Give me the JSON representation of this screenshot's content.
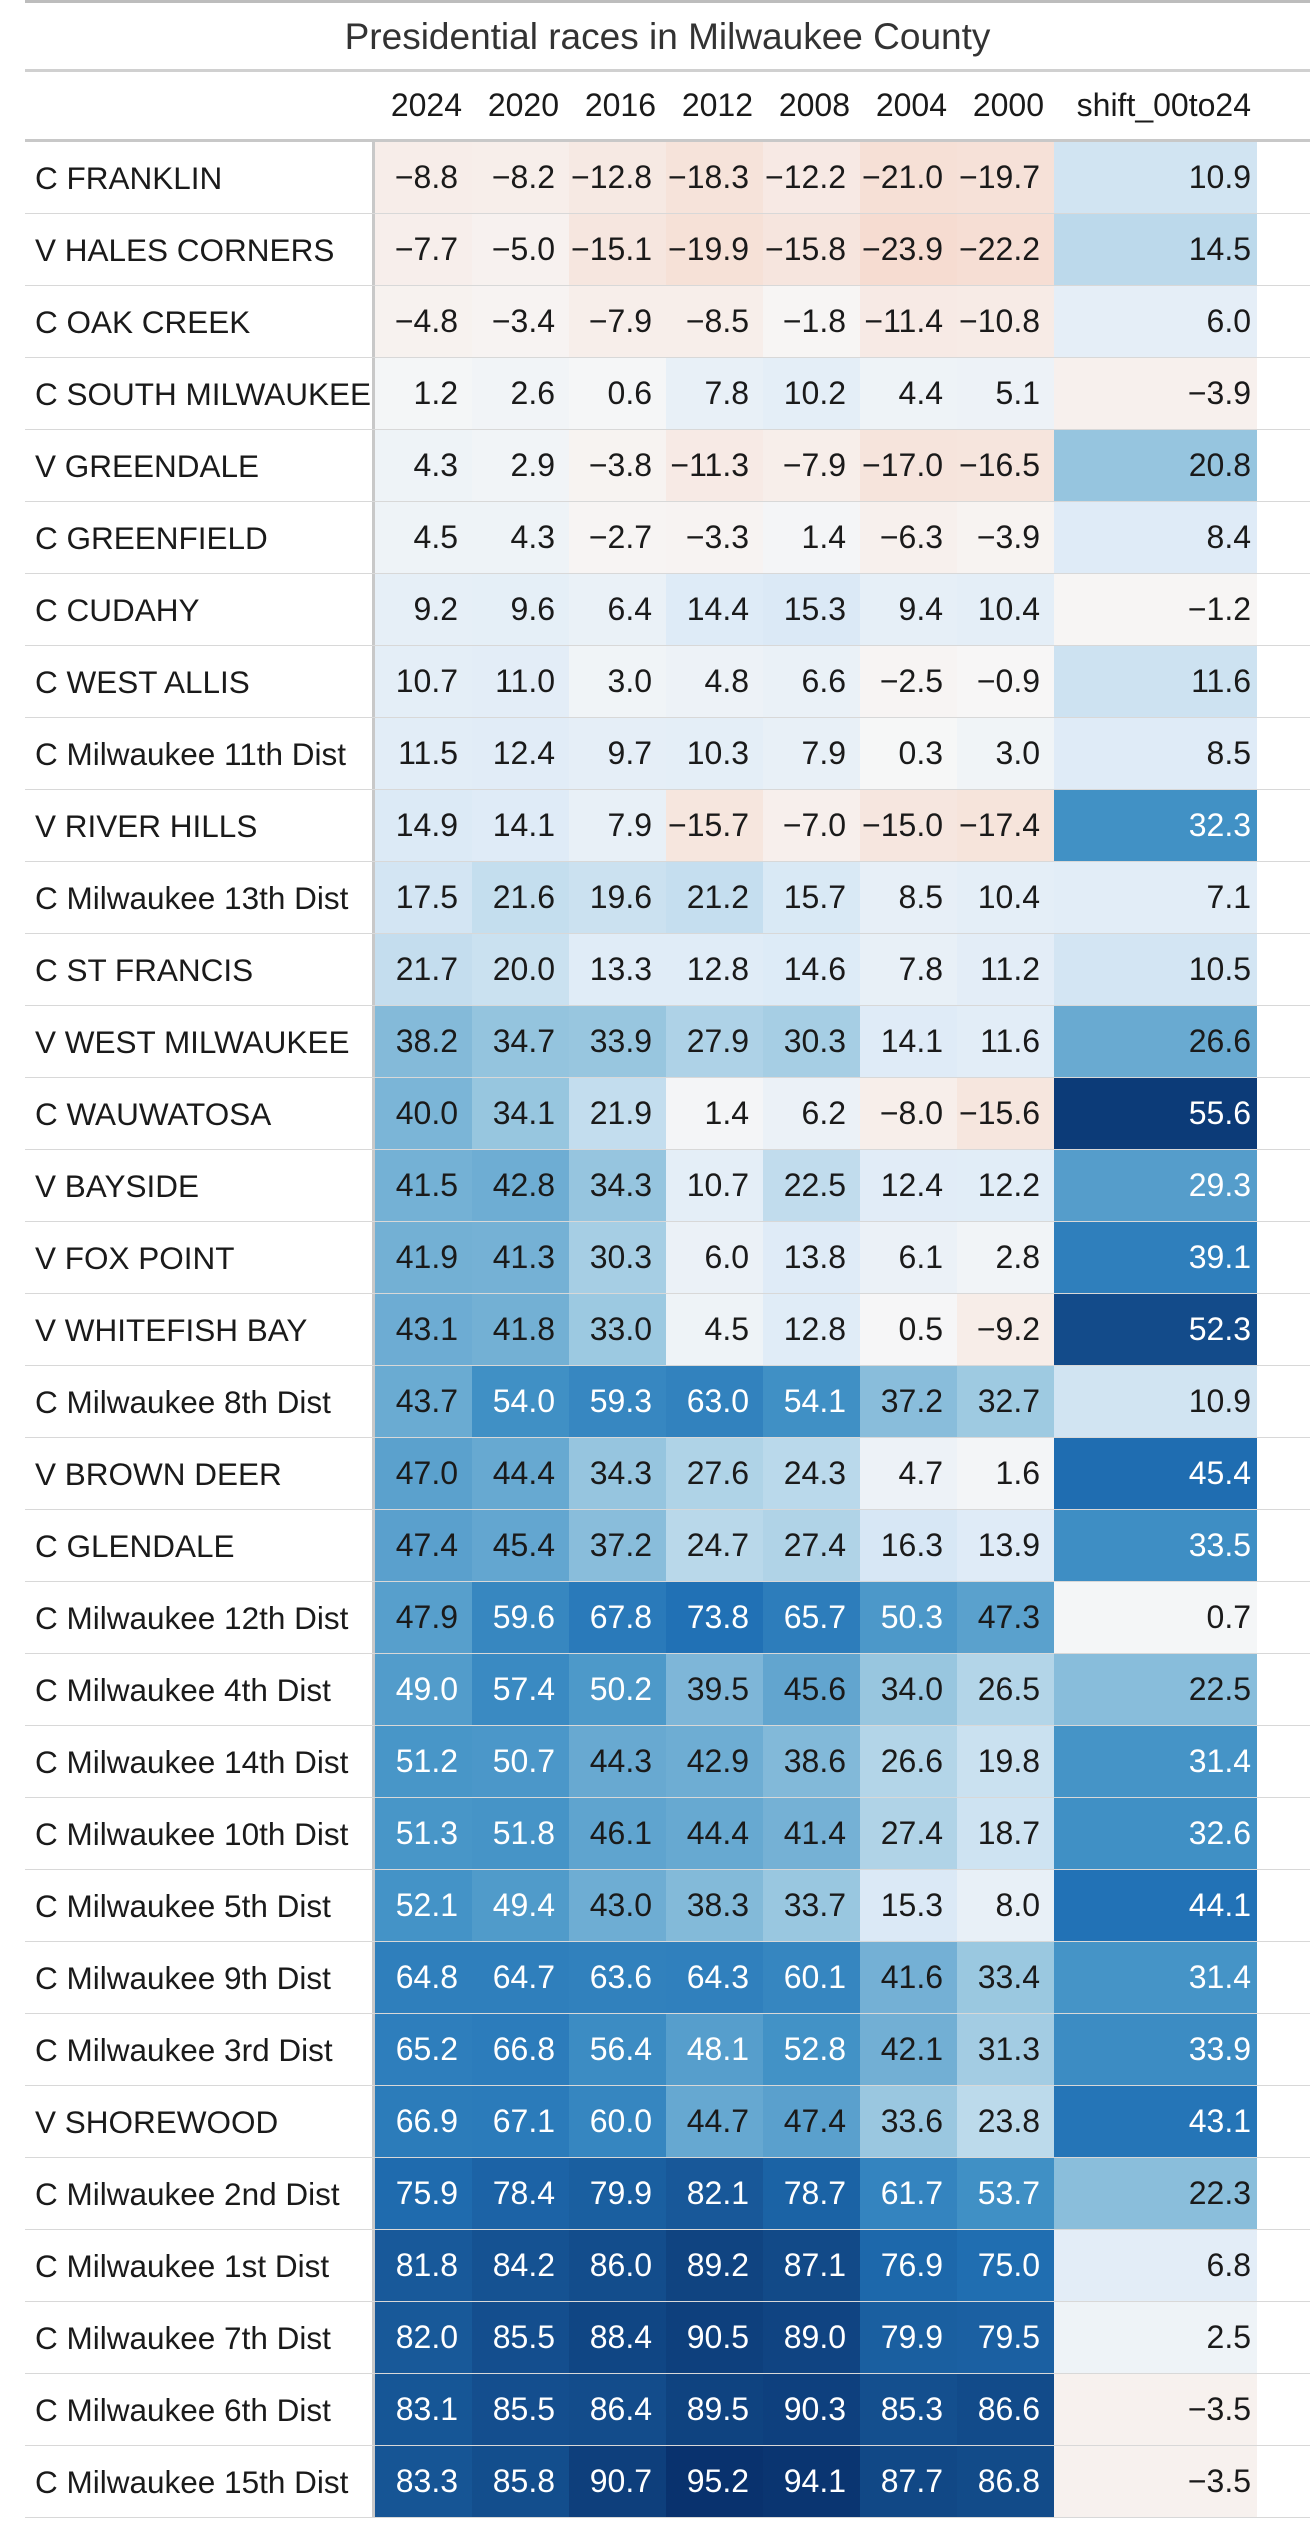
{
  "chart_data": {
    "type": "table",
    "title": "Presidential races in Milwaukee County",
    "columns": [
      "2024",
      "2020",
      "2016",
      "2012",
      "2008",
      "2004",
      "2000",
      "shift_00to24"
    ],
    "rows": [
      {
        "name": "C FRANKLIN",
        "values": [
          -8.8,
          -8.2,
          -12.8,
          -18.3,
          -12.2,
          -21.0,
          -19.7,
          10.9
        ]
      },
      {
        "name": "V HALES CORNERS",
        "values": [
          -7.7,
          -5.0,
          -15.1,
          -19.9,
          -15.8,
          -23.9,
          -22.2,
          14.5
        ]
      },
      {
        "name": "C OAK CREEK",
        "values": [
          -4.8,
          -3.4,
          -7.9,
          -8.5,
          -1.8,
          -11.4,
          -10.8,
          6.0
        ]
      },
      {
        "name": "C SOUTH MILWAUKEE",
        "values": [
          1.2,
          2.6,
          0.6,
          7.8,
          10.2,
          4.4,
          5.1,
          -3.9
        ]
      },
      {
        "name": "V GREENDALE",
        "values": [
          4.3,
          2.9,
          -3.8,
          -11.3,
          -7.9,
          -17.0,
          -16.5,
          20.8
        ]
      },
      {
        "name": "C GREENFIELD",
        "values": [
          4.5,
          4.3,
          -2.7,
          -3.3,
          1.4,
          -6.3,
          -3.9,
          8.4
        ]
      },
      {
        "name": "C CUDAHY",
        "values": [
          9.2,
          9.6,
          6.4,
          14.4,
          15.3,
          9.4,
          10.4,
          -1.2
        ]
      },
      {
        "name": "C WEST ALLIS",
        "values": [
          10.7,
          11.0,
          3.0,
          4.8,
          6.6,
          -2.5,
          -0.9,
          11.6
        ]
      },
      {
        "name": "C Milwaukee 11th Dist",
        "values": [
          11.5,
          12.4,
          9.7,
          10.3,
          7.9,
          0.3,
          3.0,
          8.5
        ]
      },
      {
        "name": "V RIVER HILLS",
        "values": [
          14.9,
          14.1,
          7.9,
          -15.7,
          -7.0,
          -15.0,
          -17.4,
          32.3
        ]
      },
      {
        "name": "C Milwaukee 13th Dist",
        "values": [
          17.5,
          21.6,
          19.6,
          21.2,
          15.7,
          8.5,
          10.4,
          7.1
        ]
      },
      {
        "name": "C ST FRANCIS",
        "values": [
          21.7,
          20.0,
          13.3,
          12.8,
          14.6,
          7.8,
          11.2,
          10.5
        ]
      },
      {
        "name": "V WEST MILWAUKEE",
        "values": [
          38.2,
          34.7,
          33.9,
          27.9,
          30.3,
          14.1,
          11.6,
          26.6
        ]
      },
      {
        "name": "C WAUWATOSA",
        "values": [
          40.0,
          34.1,
          21.9,
          1.4,
          6.2,
          -8.0,
          -15.6,
          55.6
        ]
      },
      {
        "name": "V BAYSIDE",
        "values": [
          41.5,
          42.8,
          34.3,
          10.7,
          22.5,
          12.4,
          12.2,
          29.3
        ]
      },
      {
        "name": "V FOX POINT",
        "values": [
          41.9,
          41.3,
          30.3,
          6.0,
          13.8,
          6.1,
          2.8,
          39.1
        ]
      },
      {
        "name": "V WHITEFISH BAY",
        "values": [
          43.1,
          41.8,
          33.0,
          4.5,
          12.8,
          0.5,
          -9.2,
          52.3
        ]
      },
      {
        "name": "C Milwaukee 8th Dist",
        "values": [
          43.7,
          54.0,
          59.3,
          63.0,
          54.1,
          37.2,
          32.7,
          10.9
        ]
      },
      {
        "name": "V BROWN DEER",
        "values": [
          47.0,
          44.4,
          34.3,
          27.6,
          24.3,
          4.7,
          1.6,
          45.4
        ]
      },
      {
        "name": "C GLENDALE",
        "values": [
          47.4,
          45.4,
          37.2,
          24.7,
          27.4,
          16.3,
          13.9,
          33.5
        ]
      },
      {
        "name": "C Milwaukee 12th Dist",
        "values": [
          47.9,
          59.6,
          67.8,
          73.8,
          65.7,
          50.3,
          47.3,
          0.7
        ]
      },
      {
        "name": "C Milwaukee 4th Dist",
        "values": [
          49.0,
          57.4,
          50.2,
          39.5,
          45.6,
          34.0,
          26.5,
          22.5
        ]
      },
      {
        "name": "C Milwaukee 14th Dist",
        "values": [
          51.2,
          50.7,
          44.3,
          42.9,
          38.6,
          26.6,
          19.8,
          31.4
        ]
      },
      {
        "name": "C Milwaukee 10th Dist",
        "values": [
          51.3,
          51.8,
          46.1,
          44.4,
          41.4,
          27.4,
          18.7,
          32.6
        ]
      },
      {
        "name": "C Milwaukee 5th Dist",
        "values": [
          52.1,
          49.4,
          43.0,
          38.3,
          33.7,
          15.3,
          8.0,
          44.1
        ]
      },
      {
        "name": "C Milwaukee 9th Dist",
        "values": [
          64.8,
          64.7,
          63.6,
          64.3,
          60.1,
          41.6,
          33.4,
          31.4
        ]
      },
      {
        "name": "C Milwaukee 3rd Dist",
        "values": [
          65.2,
          66.8,
          56.4,
          48.1,
          52.8,
          42.1,
          31.3,
          33.9
        ]
      },
      {
        "name": "V SHOREWOOD",
        "values": [
          66.9,
          67.1,
          60.0,
          44.7,
          47.4,
          33.6,
          23.8,
          43.1
        ]
      },
      {
        "name": "C Milwaukee 2nd Dist",
        "values": [
          75.9,
          78.4,
          79.9,
          82.1,
          78.7,
          61.7,
          53.7,
          22.3
        ]
      },
      {
        "name": "C Milwaukee 1st Dist",
        "values": [
          81.8,
          84.2,
          86.0,
          89.2,
          87.1,
          76.9,
          75.0,
          6.8
        ]
      },
      {
        "name": "C Milwaukee 7th Dist",
        "values": [
          82.0,
          85.5,
          88.4,
          90.5,
          89.0,
          79.9,
          79.5,
          2.5
        ]
      },
      {
        "name": "C Milwaukee 6th Dist",
        "values": [
          83.1,
          85.5,
          86.4,
          89.5,
          90.3,
          85.3,
          86.6,
          -3.5
        ]
      },
      {
        "name": "C Milwaukee 15th Dist",
        "values": [
          83.3,
          85.8,
          90.7,
          95.2,
          94.1,
          87.7,
          86.8,
          -3.5
        ]
      }
    ],
    "color_scale": {
      "type": "diverging",
      "negative": "#e8825c",
      "neutral": "#f7f7f7",
      "positive": "#08306b"
    }
  }
}
